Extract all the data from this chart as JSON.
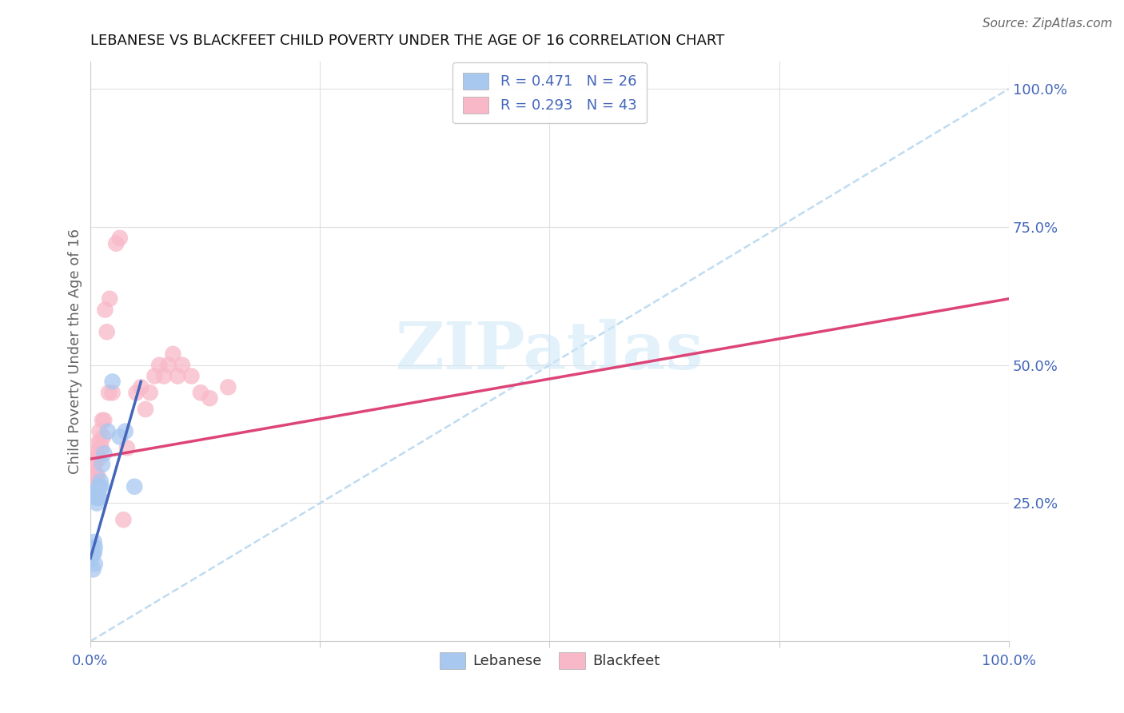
{
  "title": "LEBANESE VS BLACKFEET CHILD POVERTY UNDER THE AGE OF 16 CORRELATION CHART",
  "source": "Source: ZipAtlas.com",
  "ylabel": "Child Poverty Under the Age of 16",
  "legend_r1": "R = 0.471   N = 26",
  "legend_r2": "R = 0.293   N = 43",
  "blue_color": "#a8c8f0",
  "pink_color": "#f8b8c8",
  "blue_line_color": "#4466bb",
  "pink_line_color": "#dd4477",
  "dashed_line_color": "#b8d8f0",
  "watermark_text": "ZIPatlas",
  "watermark_color": "#d0e8f8",
  "background_color": "#ffffff",
  "grid_color": "#e0e0e0",
  "label_color": "#4466bb",
  "leb_x": [
    0.001,
    0.002,
    0.003,
    0.003,
    0.004,
    0.004,
    0.005,
    0.005,
    0.006,
    0.006,
    0.007,
    0.007,
    0.008,
    0.009,
    0.009,
    0.01,
    0.01,
    0.011,
    0.012,
    0.013,
    0.015,
    0.019,
    0.024,
    0.032,
    0.038,
    0.048
  ],
  "leb_y": [
    0.15,
    0.17,
    0.13,
    0.16,
    0.16,
    0.18,
    0.14,
    0.17,
    0.26,
    0.27,
    0.25,
    0.27,
    0.27,
    0.26,
    0.28,
    0.26,
    0.28,
    0.29,
    0.28,
    0.32,
    0.34,
    0.38,
    0.47,
    0.37,
    0.38,
    0.28
  ],
  "blk_x": [
    0.001,
    0.001,
    0.002,
    0.003,
    0.004,
    0.005,
    0.005,
    0.006,
    0.006,
    0.007,
    0.008,
    0.009,
    0.009,
    0.01,
    0.011,
    0.012,
    0.013,
    0.014,
    0.015,
    0.016,
    0.018,
    0.02,
    0.021,
    0.024,
    0.028,
    0.032,
    0.036,
    0.04,
    0.05,
    0.055,
    0.06,
    0.065,
    0.07,
    0.075,
    0.08,
    0.085,
    0.09,
    0.095,
    0.1,
    0.11,
    0.12,
    0.13,
    0.15
  ],
  "blk_y": [
    0.3,
    0.32,
    0.28,
    0.32,
    0.3,
    0.32,
    0.34,
    0.3,
    0.33,
    0.34,
    0.3,
    0.33,
    0.36,
    0.38,
    0.36,
    0.35,
    0.4,
    0.37,
    0.4,
    0.6,
    0.56,
    0.45,
    0.62,
    0.45,
    0.72,
    0.73,
    0.22,
    0.35,
    0.45,
    0.46,
    0.42,
    0.45,
    0.48,
    0.5,
    0.48,
    0.5,
    0.52,
    0.48,
    0.5,
    0.48,
    0.45,
    0.44,
    0.46
  ],
  "xlim": [
    0.0,
    1.0
  ],
  "ylim": [
    0.0,
    1.05
  ],
  "pink_line_x": [
    0.0,
    1.0
  ],
  "pink_line_y_start": 0.33,
  "pink_line_y_end": 0.62,
  "blue_line_x_end": 0.055,
  "blue_line_y_start": 0.15,
  "blue_line_y_end": 0.47
}
